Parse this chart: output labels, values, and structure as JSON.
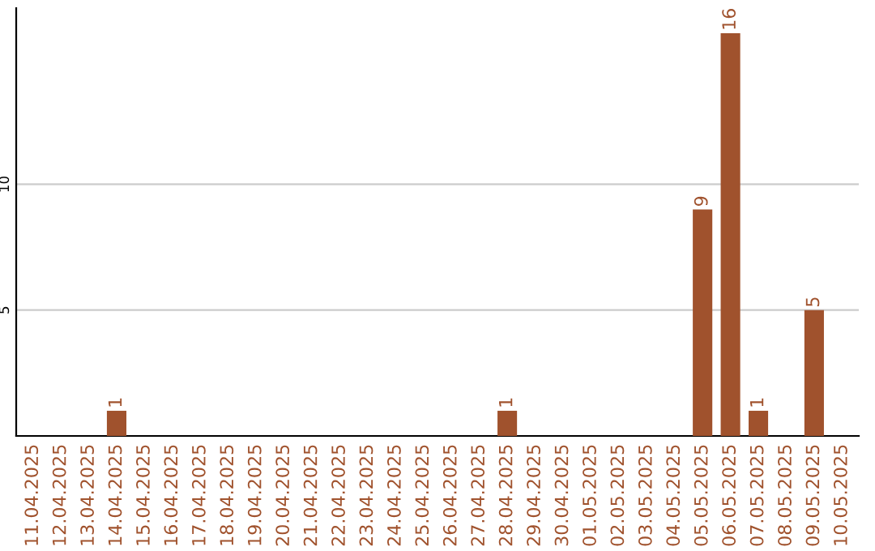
{
  "chart_data": {
    "type": "bar",
    "categories": [
      "11.04.2025",
      "12.04.2025",
      "13.04.2025",
      "14.04.2025",
      "15.04.2025",
      "16.04.2025",
      "17.04.2025",
      "18.04.2025",
      "19.04.2025",
      "20.04.2025",
      "21.04.2025",
      "22.04.2025",
      "23.04.2025",
      "24.04.2025",
      "25.04.2025",
      "26.04.2025",
      "27.04.2025",
      "28.04.2025",
      "29.04.2025",
      "30.04.2025",
      "01.05.2025",
      "02.05.2025",
      "03.05.2025",
      "04.05.2025",
      "05.05.2025",
      "06.05.2025",
      "07.05.2025",
      "08.05.2025",
      "09.05.2025",
      "10.05.2025"
    ],
    "values": [
      0,
      0,
      0,
      1,
      0,
      0,
      0,
      0,
      0,
      0,
      0,
      0,
      0,
      0,
      0,
      0,
      0,
      1,
      0,
      0,
      0,
      0,
      0,
      0,
      9,
      16,
      1,
      0,
      5,
      0
    ],
    "value_labels": [
      null,
      null,
      null,
      "1",
      null,
      null,
      null,
      null,
      null,
      null,
      null,
      null,
      null,
      null,
      null,
      null,
      null,
      "1",
      null,
      null,
      null,
      null,
      null,
      null,
      "9",
      "16",
      "1",
      null,
      "5",
      null
    ],
    "color": "#a0522d",
    "ylim": [
      0,
      17
    ],
    "yticks": [
      5,
      10
    ],
    "grid": "y"
  }
}
